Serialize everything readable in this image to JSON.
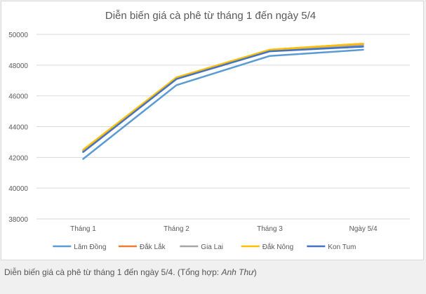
{
  "chart_data": {
    "type": "line",
    "title": "Diễn biến giá cà phê từ tháng 1 đến ngày 5/4",
    "categories": [
      "Tháng 1",
      "Tháng 2",
      "Tháng 3",
      "Ngày 5/4"
    ],
    "ylim": [
      38000,
      50000
    ],
    "yticks": [
      38000,
      40000,
      42000,
      44000,
      46000,
      48000,
      50000
    ],
    "grid": true,
    "legend_position": "bottom",
    "series": [
      {
        "name": "Lâm Đồng",
        "color": "#5b9bd5",
        "values": [
          41900,
          46700,
          48600,
          49000
        ]
      },
      {
        "name": "Đắk Lắk",
        "color": "#ed7d31",
        "values": [
          42450,
          47200,
          49000,
          49400
        ]
      },
      {
        "name": "Gia Lai",
        "color": "#a5a5a5",
        "values": [
          42400,
          47100,
          48950,
          49300
        ]
      },
      {
        "name": "Đắk Nông",
        "color": "#ffc000",
        "values": [
          42500,
          47200,
          49000,
          49400
        ]
      },
      {
        "name": "Kon Tum",
        "color": "#4472c4",
        "values": [
          42350,
          47100,
          48900,
          49200
        ]
      }
    ]
  },
  "caption": {
    "text": "Diễn biến giá cà phê từ tháng 1 đến ngày 5/4. (Tổng hợp: ",
    "author": "Anh Thư",
    "closing": ")"
  }
}
